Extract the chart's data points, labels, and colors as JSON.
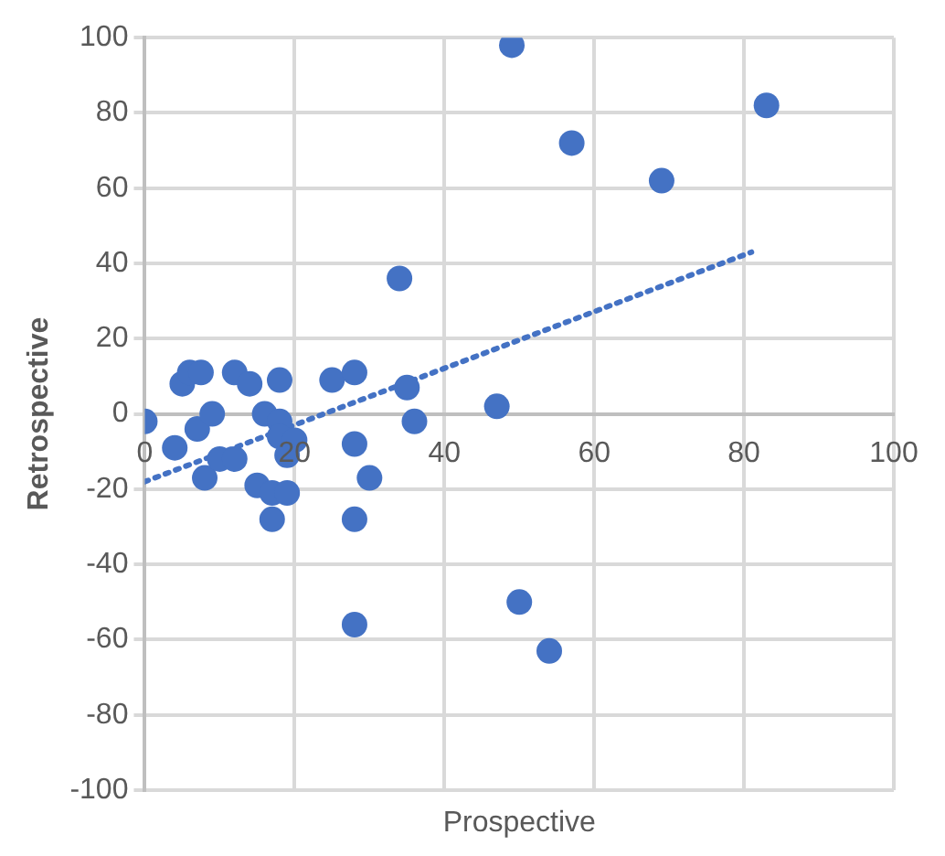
{
  "chart_data": {
    "type": "scatter",
    "xlabel": "Prospective",
    "ylabel": "Retrospective",
    "xlim": [
      0,
      100
    ],
    "xticks": [
      0,
      20,
      40,
      60,
      80,
      100
    ],
    "ylim": [
      -100,
      100
    ],
    "yticks": [
      -100,
      -80,
      -60,
      -40,
      -20,
      0,
      20,
      40,
      60,
      80,
      100
    ],
    "grid": true,
    "legend": false,
    "marker": "circle",
    "series": [
      {
        "color": "#4472c4",
        "x": [
          0,
          4,
          5,
          6,
          7.5,
          7,
          9,
          8,
          10,
          12,
          12,
          14,
          15,
          16,
          18,
          18,
          17,
          17,
          18,
          19,
          20,
          19,
          25,
          28,
          28,
          30,
          28,
          28,
          34,
          35,
          36,
          49,
          83,
          57,
          69,
          47,
          50,
          54
        ],
        "values": [
          -2,
          -9,
          8,
          11,
          11,
          -4,
          0,
          -17,
          -12,
          -12,
          11,
          8,
          -19,
          0,
          -2,
          9,
          -21,
          -28,
          -6,
          -21,
          -7,
          -11,
          9,
          11,
          -8,
          -17,
          -28,
          -56,
          36,
          7,
          -2,
          98,
          82,
          72,
          62,
          2,
          -50,
          -63
        ]
      },
      {
        "type": "line",
        "color": "#4472c4",
        "line_style": "dotted",
        "marker": "none",
        "x": [
          0,
          81
        ],
        "values": [
          -18,
          43
        ]
      }
    ]
  }
}
